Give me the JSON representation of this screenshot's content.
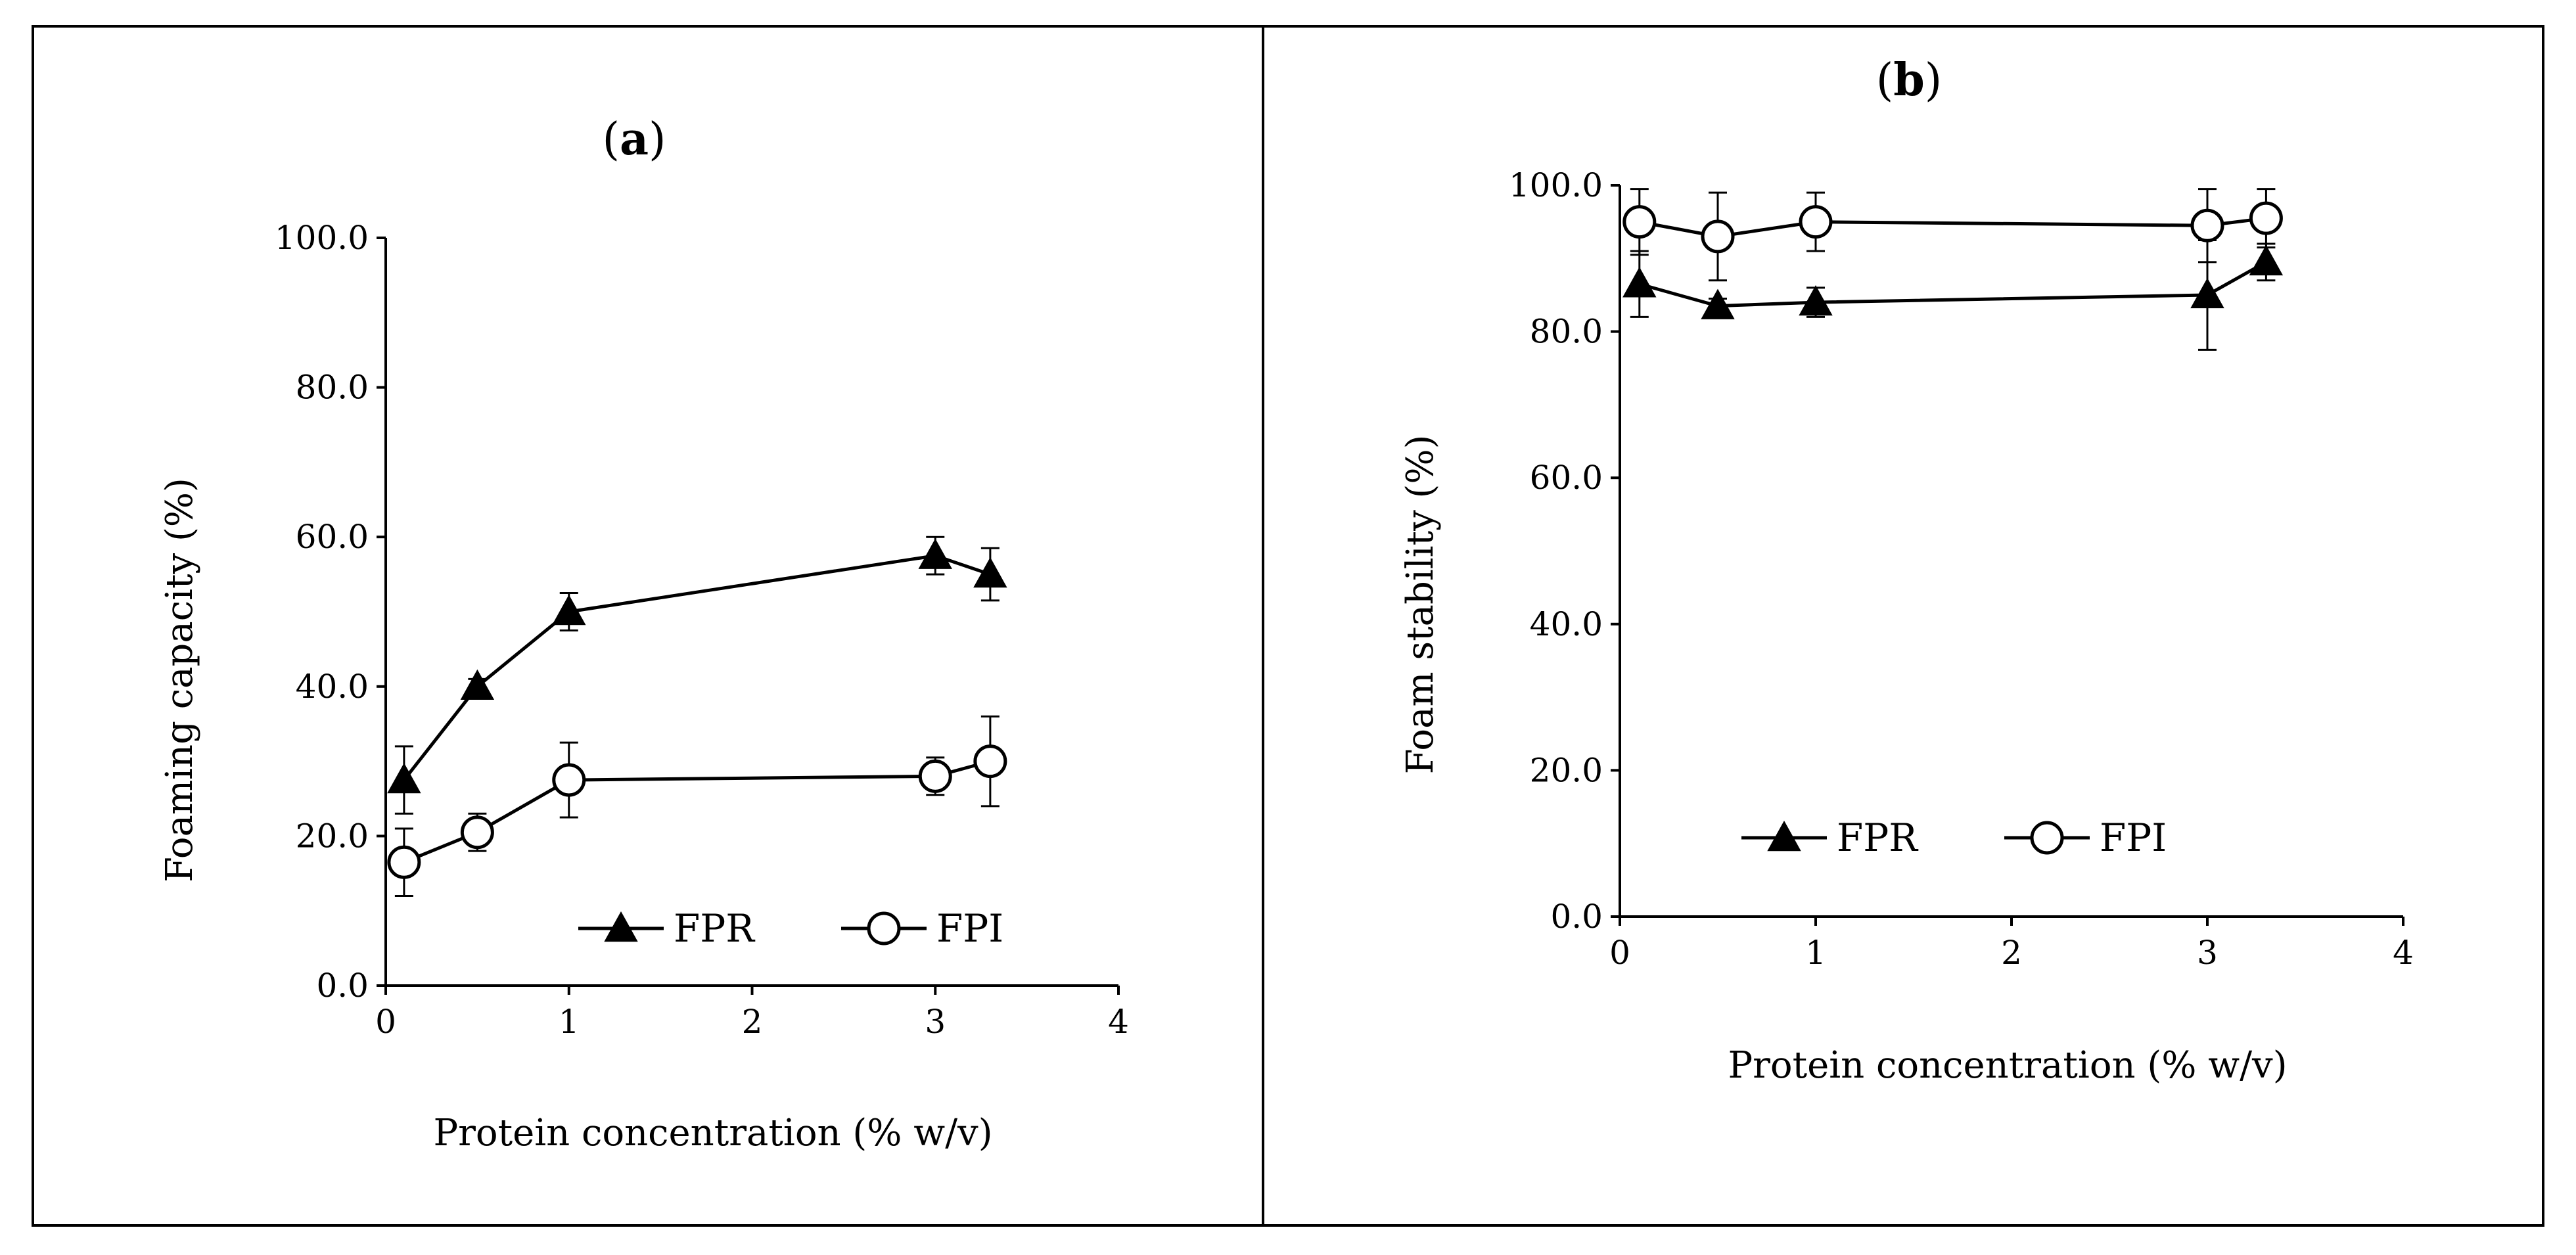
{
  "chart_data": [
    {
      "type": "line",
      "panel_label_open": "(",
      "panel_label": "a",
      "panel_label_close": ")",
      "xlabel": "Protein concentration (% w/v)",
      "ylabel": "Foaming capacity (%)",
      "xlim": [
        0,
        4
      ],
      "ylim": [
        0,
        100
      ],
      "xticks": [
        0,
        1,
        2,
        3,
        4
      ],
      "xtick_labels": [
        "0",
        "1",
        "2",
        "3",
        "4"
      ],
      "yticks": [
        0,
        20,
        40,
        60,
        80,
        100
      ],
      "ytick_labels": [
        "0.0",
        "20.0",
        "40.0",
        "60.0",
        "80.0",
        "100.0"
      ],
      "legend_position": "bottom-right",
      "series": [
        {
          "name": "FPR",
          "marker": "filled-triangle",
          "x": [
            0.1,
            0.5,
            1,
            3,
            3.3
          ],
          "y": [
            27.5,
            40.0,
            50.0,
            57.5,
            55.0
          ],
          "err": [
            4.5,
            1.0,
            2.5,
            2.5,
            3.5
          ]
        },
        {
          "name": "FPI",
          "marker": "open-circle",
          "x": [
            0.1,
            0.5,
            1,
            3,
            3.3
          ],
          "y": [
            16.5,
            20.5,
            27.5,
            28.0,
            30.0
          ],
          "err": [
            4.5,
            2.5,
            5.0,
            2.5,
            6.0
          ]
        }
      ]
    },
    {
      "type": "line",
      "panel_label_open": "(",
      "panel_label": "b",
      "panel_label_close": ")",
      "xlabel": "Protein concentration (% w/v)",
      "ylabel": "Foam stability (%)",
      "xlim": [
        0,
        4
      ],
      "ylim": [
        0,
        100
      ],
      "xticks": [
        0,
        1,
        2,
        3,
        4
      ],
      "xtick_labels": [
        "0",
        "1",
        "2",
        "3",
        "4"
      ],
      "yticks": [
        0,
        20,
        40,
        60,
        80,
        100
      ],
      "ytick_labels": [
        "0.0",
        "20.0",
        "40.0",
        "60.0",
        "80.0",
        "100.0"
      ],
      "legend_position": "lower-center",
      "series": [
        {
          "name": "FPR",
          "marker": "filled-triangle",
          "x": [
            0.1,
            0.5,
            1,
            3,
            3.3
          ],
          "y": [
            86.5,
            83.5,
            84.0,
            85.0,
            89.5
          ],
          "err": [
            4.5,
            1.0,
            2.0,
            7.5,
            2.5
          ]
        },
        {
          "name": "FPI",
          "marker": "open-circle",
          "x": [
            0.1,
            0.5,
            1,
            3,
            3.3
          ],
          "y": [
            95.0,
            93.0,
            95.0,
            94.5,
            95.5
          ],
          "err": [
            4.5,
            6.0,
            4.0,
            5.0,
            4.0
          ]
        }
      ]
    }
  ]
}
